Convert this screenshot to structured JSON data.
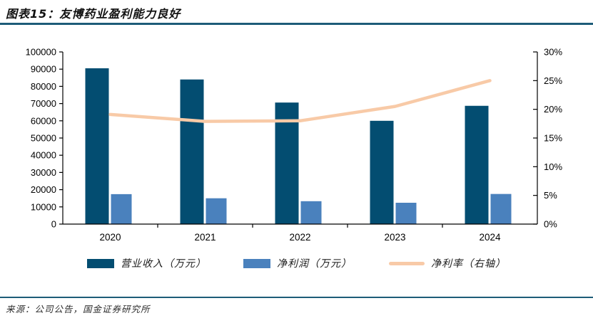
{
  "header": {
    "title": "图表15：友博药业盈利能力良好"
  },
  "source": {
    "text": "来源：公司公告，国金证券研究所"
  },
  "colors": {
    "revenue_bar": "#034d71",
    "profit_bar": "#4a81bd",
    "margin_line": "#f8caa7",
    "rule": "#1d5c78",
    "axis": "#000000",
    "tick_text": "#000000"
  },
  "chart_data": {
    "type": "bar+line combo",
    "categories": [
      "2020",
      "2021",
      "2022",
      "2023",
      "2024"
    ],
    "series": [
      {
        "name": "营业收入（万元）",
        "type": "bar",
        "axis": "left",
        "color": "#034d71",
        "values": [
          90500,
          84000,
          70600,
          60000,
          68700
        ]
      },
      {
        "name": "净利润（万元）",
        "type": "bar",
        "axis": "left",
        "color": "#4a81bd",
        "values": [
          17400,
          15000,
          13300,
          12400,
          17500
        ]
      },
      {
        "name": "净利率（右轴）",
        "type": "line",
        "axis": "right",
        "color": "#f8caa7",
        "values": [
          19.1,
          17.9,
          18.0,
          20.5,
          25.0
        ]
      }
    ],
    "left_axis": {
      "min": 0,
      "max": 100000,
      "step": 10000,
      "tick_labels": [
        "0",
        "10000",
        "20000",
        "30000",
        "40000",
        "50000",
        "60000",
        "70000",
        "80000",
        "90000",
        "100000"
      ]
    },
    "right_axis": {
      "min": 0,
      "max": 30,
      "step": 5,
      "tick_labels": [
        "0%",
        "5%",
        "10%",
        "15%",
        "20%",
        "25%",
        "30%"
      ]
    },
    "grid": "off",
    "legend_position": "bottom"
  }
}
